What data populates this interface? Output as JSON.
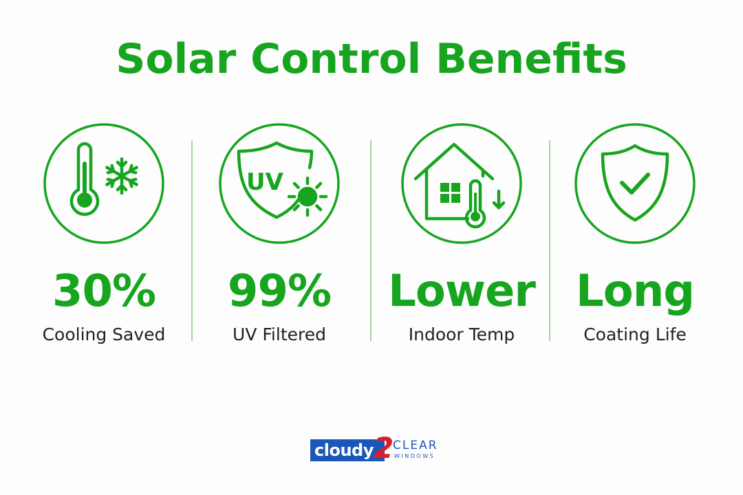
{
  "title": "Solar Control Benefits",
  "colors": {
    "accent": "#17a51f",
    "divider": "#9fd6a0",
    "text": "#1f1f1f",
    "logo_blue": "#1b57b8",
    "logo_red": "#e01d25"
  },
  "benefits": [
    {
      "icon": "thermometer-snowflake-icon",
      "value": "30%",
      "caption": "Cooling Saved"
    },
    {
      "icon": "uv-shield-sun-icon",
      "value": "99%",
      "caption": "UV Filtered"
    },
    {
      "icon": "house-thermometer-icon",
      "value": "Lower",
      "caption": "Indoor Temp"
    },
    {
      "icon": "shield-check-icon",
      "value": "Long",
      "caption": "Coating Life"
    }
  ],
  "uv_icon_text": "UV",
  "logo": {
    "word1": "cloudy",
    "number": "2",
    "word2": "CLEAR",
    "tagline": "WINDOWS"
  }
}
